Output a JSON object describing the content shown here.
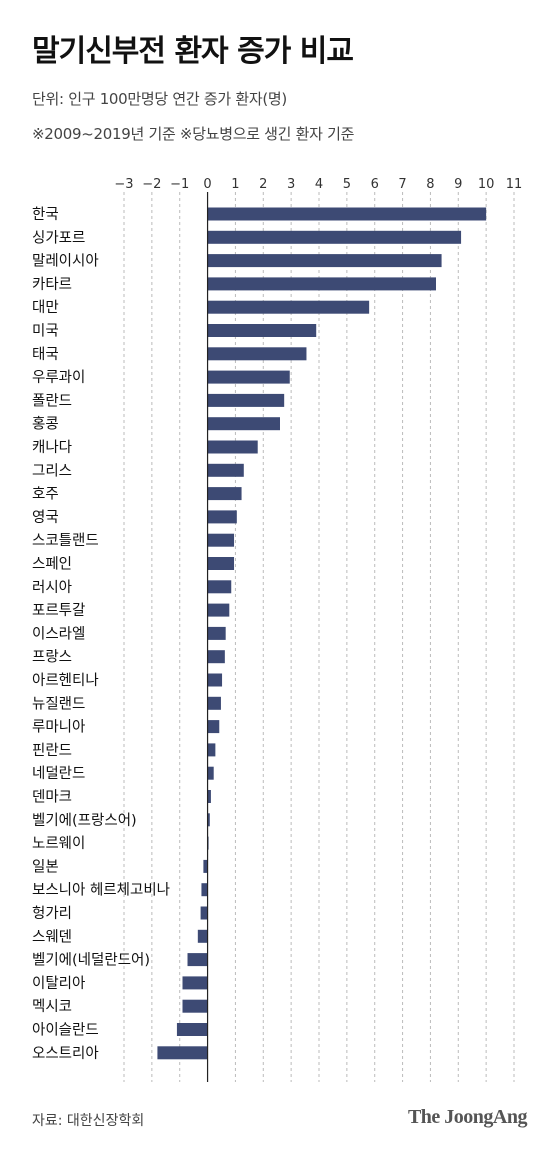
{
  "header": {
    "title": "말기신부전 환자 증가 비교",
    "subtitle": "단위: 인구 100만명당 연간 증가 환자(명)",
    "note": "※2009~2019년 기준  ※당뇨병으로 생긴 환자 기준"
  },
  "footer": {
    "source": "자료: 대한신장학회",
    "brand": "The JoongAng"
  },
  "colors": {
    "bar": "#3d4a74",
    "grid": "#bbbbbb",
    "zero_line": "#222222"
  },
  "chart_data": {
    "type": "bar",
    "orientation": "horizontal",
    "xlim": [
      -3,
      11
    ],
    "ticks": [
      "−3",
      "−2",
      "−1",
      "0",
      "1",
      "2",
      "3",
      "4",
      "5",
      "6",
      "7",
      "8",
      "9",
      "10",
      "11"
    ],
    "tick_values": [
      -3,
      -2,
      -1,
      0,
      1,
      2,
      3,
      4,
      5,
      6,
      7,
      8,
      9,
      10,
      11
    ],
    "grid": true,
    "categories": [
      "한국",
      "싱가포르",
      "말레이시아",
      "카타르",
      "대만",
      "미국",
      "태국",
      "우루과이",
      "폴란드",
      "홍콩",
      "캐나다",
      "그리스",
      "호주",
      "영국",
      "스코틀랜드",
      "스페인",
      "러시아",
      "포르투갈",
      "이스라엘",
      "프랑스",
      "아르헨티나",
      "뉴질랜드",
      "루마니아",
      "핀란드",
      "네덜란드",
      "덴마크",
      "벨기에(프랑스어)",
      "노르웨이",
      "일본",
      "보스니아 헤르체고비나",
      "헝가리",
      "스웨덴",
      "벨기에(네덜란드어)",
      "이탈리아",
      "멕시코",
      "아이슬란드",
      "오스트리아"
    ],
    "values": [
      10.0,
      9.1,
      8.4,
      8.2,
      5.8,
      3.9,
      3.55,
      2.95,
      2.75,
      2.6,
      1.8,
      1.3,
      1.22,
      1.05,
      0.95,
      0.95,
      0.85,
      0.78,
      0.65,
      0.62,
      0.52,
      0.48,
      0.42,
      0.28,
      0.22,
      0.12,
      0.08,
      0.03,
      -0.15,
      -0.22,
      -0.25,
      -0.35,
      -0.72,
      -0.9,
      -0.9,
      -1.1,
      -1.8
    ]
  }
}
